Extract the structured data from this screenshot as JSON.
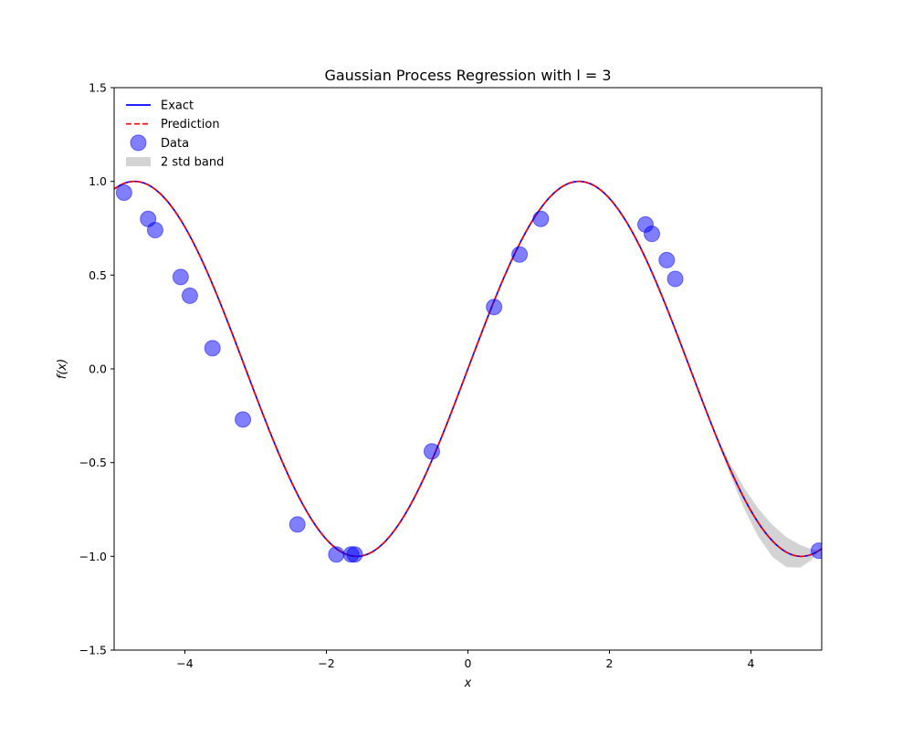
{
  "chart_data": {
    "type": "line",
    "title": "Gaussian Process Regression with l = 3",
    "xlabel": "x",
    "ylabel": "f(x)",
    "xlim": [
      -5,
      5
    ],
    "ylim": [
      -1.5,
      1.5
    ],
    "xticks": [
      -4,
      -2,
      0,
      2,
      4
    ],
    "xtick_labels": [
      "−4",
      "−2",
      "0",
      "2",
      "4"
    ],
    "yticks": [
      -1.5,
      -1.0,
      -0.5,
      0.0,
      0.5,
      1.0,
      1.5
    ],
    "ytick_labels": [
      "−1.5",
      "−1.0",
      "−0.5",
      "0.0",
      "0.5",
      "1.0",
      "1.5"
    ],
    "grid": false,
    "legend_position": "top-left",
    "series": [
      {
        "name": "Exact",
        "kind": "line",
        "color": "#0000ff",
        "style": "solid",
        "function": "sin(x)"
      },
      {
        "name": "Prediction",
        "kind": "line",
        "color": "#ff0000",
        "style": "dashed",
        "function": "sin(x)"
      },
      {
        "name": "Data",
        "kind": "scatter",
        "color": "#0000ff",
        "alpha": 0.5,
        "x": [
          -4.86,
          -4.52,
          -4.42,
          -4.06,
          -3.93,
          -3.61,
          -3.18,
          -2.41,
          -1.86,
          -1.65,
          -1.6,
          -0.51,
          0.37,
          0.73,
          1.03,
          2.51,
          2.6,
          2.81,
          2.93,
          4.96
        ],
        "y": [
          0.94,
          0.8,
          0.74,
          0.49,
          0.39,
          0.11,
          -0.27,
          -0.83,
          -0.99,
          -0.99,
          -0.99,
          -0.44,
          0.33,
          0.61,
          0.8,
          0.77,
          0.72,
          0.58,
          0.48,
          -0.97
        ]
      },
      {
        "name": "2 std band",
        "kind": "band",
        "color": "#d3d3d3",
        "x": [
          3.5,
          3.7,
          3.9,
          4.1,
          4.3,
          4.5,
          4.7,
          4.85,
          4.96
        ],
        "half_width": [
          0.0,
          0.03,
          0.055,
          0.075,
          0.085,
          0.08,
          0.06,
          0.03,
          0.0
        ]
      }
    ]
  }
}
